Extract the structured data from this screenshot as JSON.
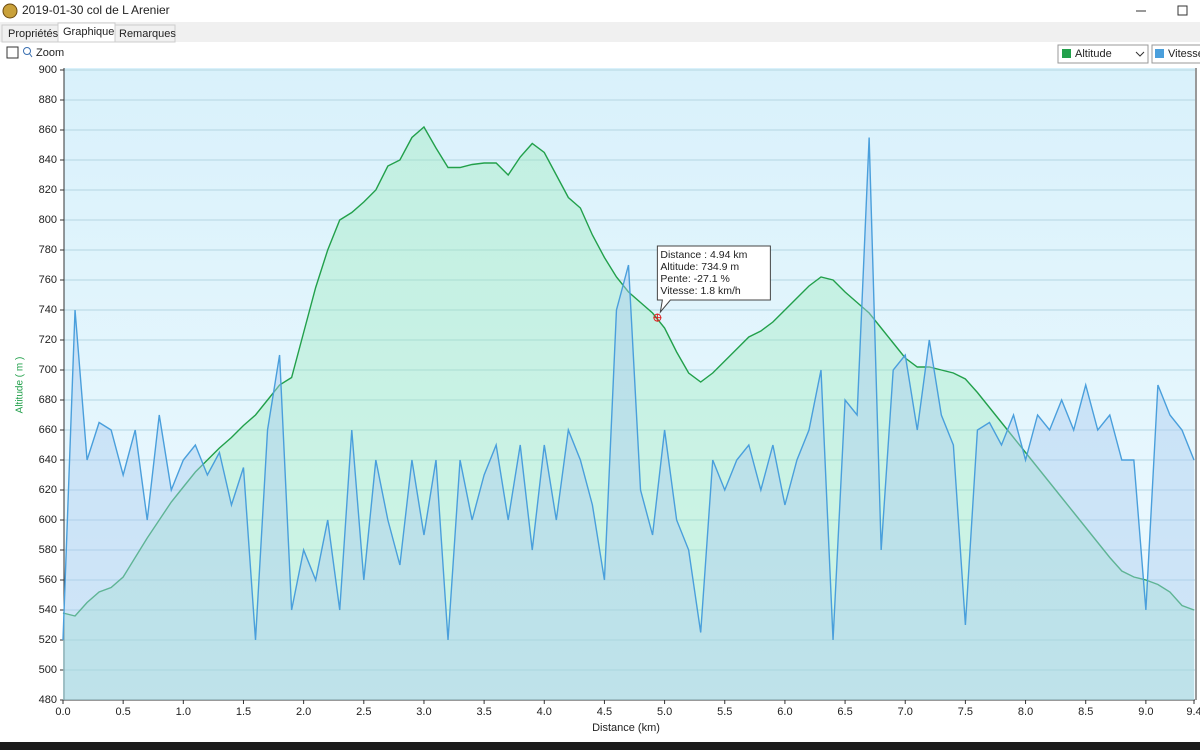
{
  "window": {
    "title": "2019-01-30 col de  L  Arenier",
    "tabs": [
      "Propriétés",
      "Graphique",
      "Remarques"
    ],
    "zoom": "Zoom"
  },
  "chart_data": {
    "type": "line",
    "xlabel": "Distance   (km)",
    "ylabel": "Altitude ( m )",
    "x": [
      0.0,
      0.1,
      0.2,
      0.3,
      0.4,
      0.5,
      0.6,
      0.7,
      0.8,
      0.9,
      1.0,
      1.1,
      1.2,
      1.3,
      1.4,
      1.5,
      1.6,
      1.7,
      1.8,
      1.9,
      2.0,
      2.1,
      2.2,
      2.3,
      2.4,
      2.5,
      2.6,
      2.7,
      2.8,
      2.9,
      3.0,
      3.1,
      3.2,
      3.3,
      3.4,
      3.5,
      3.6,
      3.7,
      3.8,
      3.9,
      4.0,
      4.1,
      4.2,
      4.3,
      4.4,
      4.5,
      4.6,
      4.7,
      4.8,
      4.9,
      5.0,
      5.1,
      5.2,
      5.3,
      5.4,
      5.5,
      5.6,
      5.7,
      5.8,
      5.9,
      6.0,
      6.1,
      6.2,
      6.3,
      6.4,
      6.5,
      6.6,
      6.7,
      6.8,
      6.9,
      7.0,
      7.1,
      7.2,
      7.3,
      7.4,
      7.5,
      7.6,
      7.7,
      7.8,
      7.9,
      8.0,
      8.1,
      8.2,
      8.3,
      8.4,
      8.5,
      8.6,
      8.7,
      8.8,
      8.9,
      9.0,
      9.1,
      9.2,
      9.3,
      9.4
    ],
    "series": [
      {
        "name": "Altitude",
        "color": "#22a04b",
        "fill": "rgba(150,235,180,0.35)",
        "values": [
          538,
          536,
          545,
          552,
          555,
          562,
          575,
          588,
          600,
          612,
          622,
          632,
          640,
          648,
          655,
          663,
          670,
          680,
          690,
          695,
          725,
          755,
          780,
          800,
          805,
          812,
          820,
          836,
          840,
          855,
          862,
          848,
          835,
          835,
          837,
          838,
          838,
          830,
          842,
          851,
          845,
          830,
          815,
          808,
          790,
          775,
          762,
          752,
          745,
          738,
          728,
          712,
          698,
          692,
          698,
          706,
          714,
          722,
          726,
          732,
          740,
          748,
          756,
          762,
          760,
          752,
          745,
          738,
          728,
          718,
          708,
          702,
          702,
          700,
          698,
          694,
          685,
          675,
          665,
          655,
          645,
          635,
          625,
          615,
          605,
          595,
          585,
          575,
          566,
          562,
          560,
          557,
          552,
          543,
          540
        ]
      },
      {
        "name": "Vitesse",
        "color": "#4a9fdc",
        "fill": "rgba(170,205,240,0.45)",
        "values": [
          520,
          740,
          640,
          665,
          660,
          630,
          660,
          600,
          670,
          620,
          640,
          650,
          630,
          645,
          610,
          635,
          520,
          660,
          710,
          540,
          580,
          560,
          600,
          540,
          660,
          560,
          640,
          600,
          570,
          640,
          590,
          640,
          520,
          640,
          600,
          630,
          650,
          600,
          650,
          580,
          650,
          600,
          660,
          640,
          610,
          560,
          740,
          770,
          620,
          590,
          660,
          600,
          580,
          525,
          640,
          620,
          640,
          650,
          620,
          650,
          610,
          640,
          660,
          700,
          520,
          680,
          670,
          855,
          580,
          700,
          710,
          660,
          720,
          670,
          650,
          530,
          660,
          665,
          650,
          670,
          640,
          670,
          660,
          680,
          660,
          690,
          660,
          670,
          640,
          640,
          540,
          690,
          670,
          660,
          640
        ]
      }
    ],
    "xlim": [
      0,
      9.4
    ],
    "ylim": [
      480,
      900
    ],
    "xticks": [
      {
        "value": 0,
        "label": "0.0"
      },
      0.5,
      {
        "value": 1,
        "label": "1.0"
      },
      1.5,
      {
        "value": 2,
        "label": "2.0"
      },
      2.5,
      {
        "value": 3,
        "label": "3.0"
      },
      3.5,
      {
        "value": 4,
        "label": "4.0"
      },
      4.5,
      {
        "value": 5,
        "label": "5.0"
      },
      5.5,
      {
        "value": 6,
        "label": "6.0"
      },
      6.5,
      {
        "value": 7,
        "label": "7.0"
      },
      7.5,
      {
        "value": 8,
        "label": "8.0"
      },
      8.5,
      {
        "value": 9,
        "label": "9.0"
      },
      9.4
    ],
    "yticks": [
      480,
      500,
      520,
      540,
      560,
      580,
      600,
      620,
      640,
      660,
      680,
      700,
      720,
      740,
      760,
      780,
      800,
      820,
      840,
      860,
      880,
      900
    ],
    "grid": true,
    "cursor": {
      "x": 4.94,
      "y": 734.9
    },
    "annotations": [
      "Distance  : 4.94 km",
      "Altitude: 734.9 m",
      "Pente: -27.1 %",
      "Vitesse: 1.8 km/h"
    ]
  }
}
